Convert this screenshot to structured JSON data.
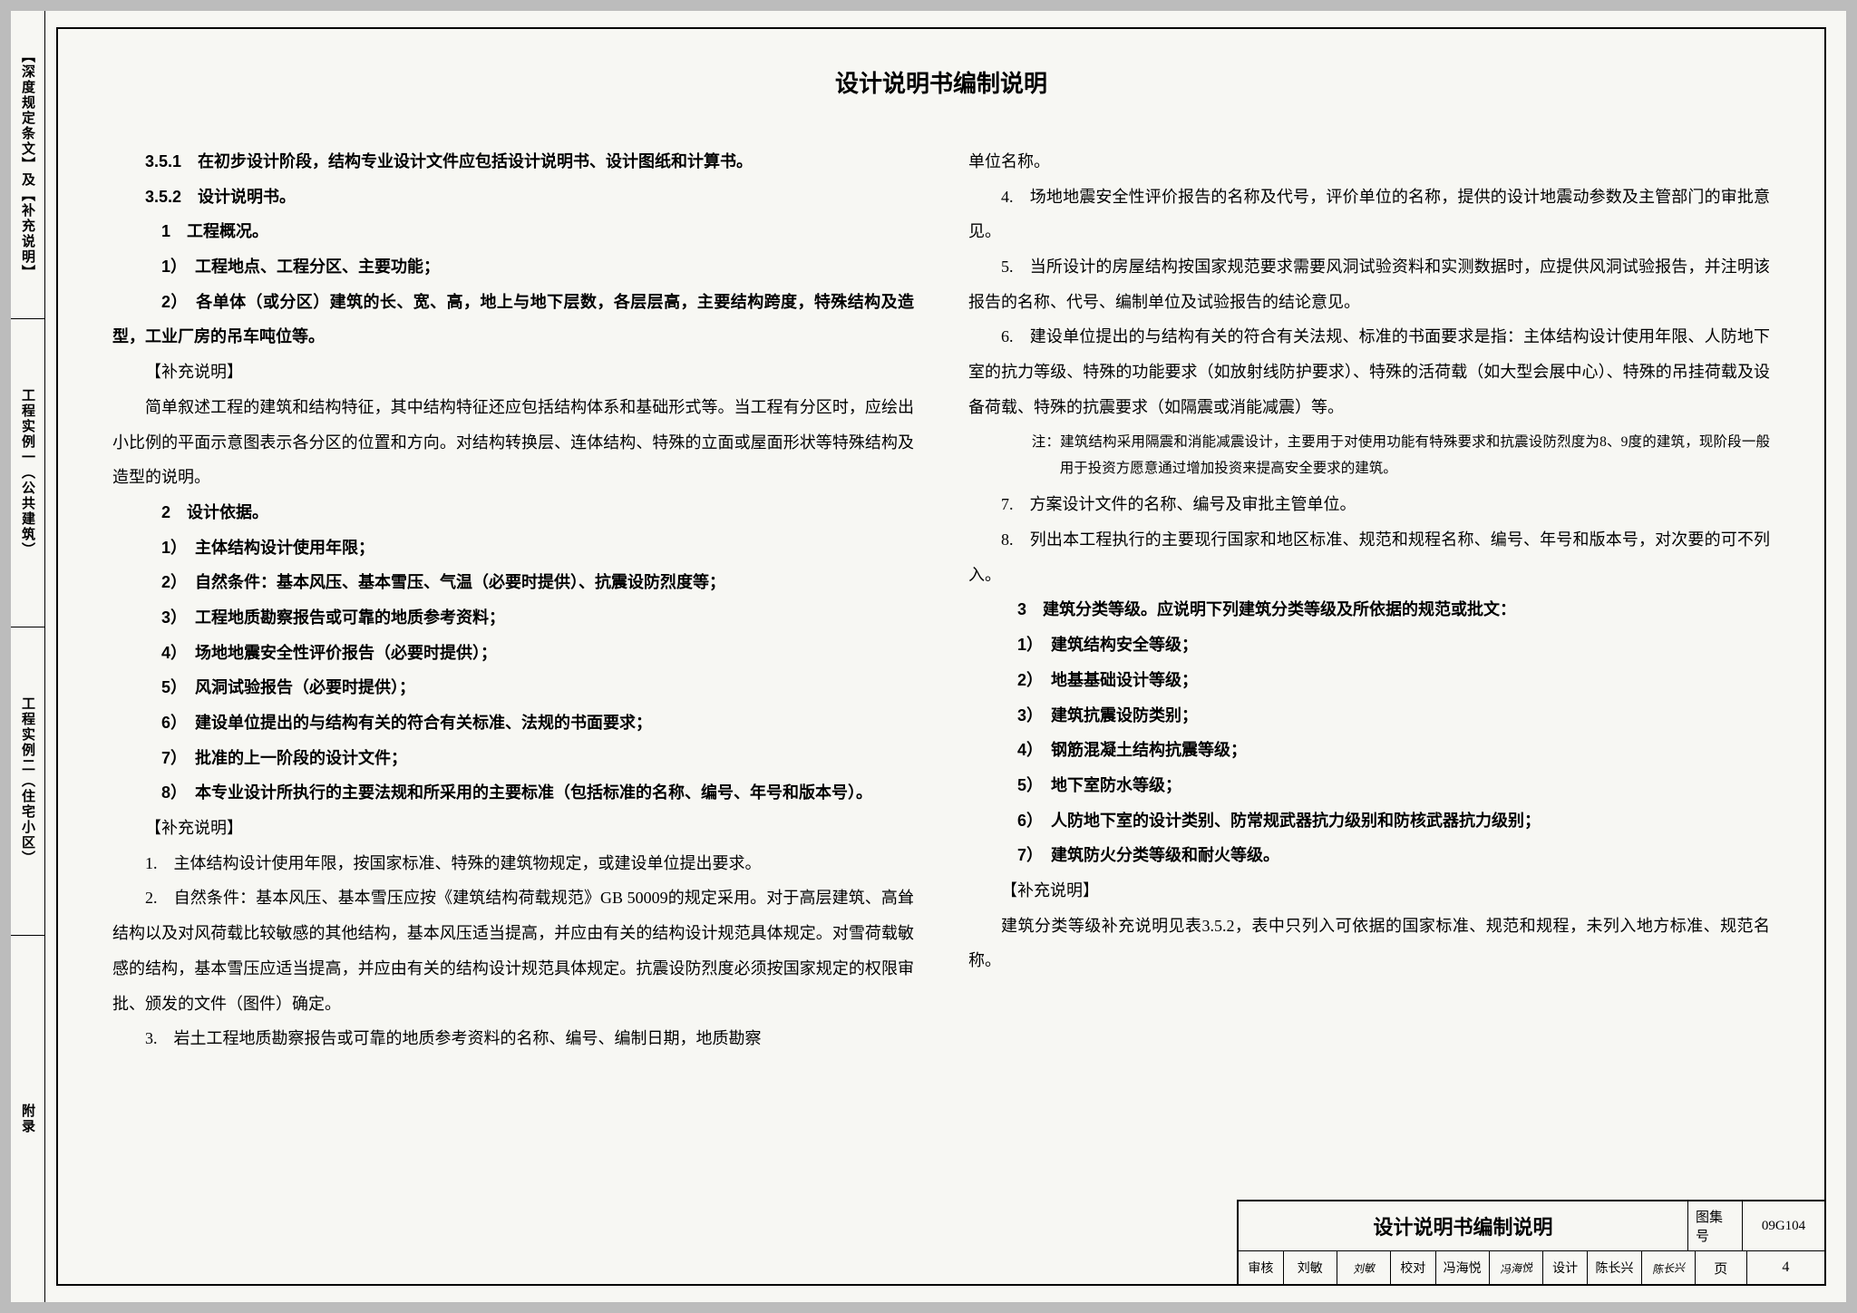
{
  "sidebar": {
    "tabs": [
      "【深度规定条文】及【补充说明】",
      "工程实例一（公共建筑）",
      "工程实例二（住宅小区）",
      "附录"
    ]
  },
  "document": {
    "title": "设计说明书编制说明",
    "left_column": {
      "p1": "3.5.1　在初步设计阶段，结构专业设计文件应包括设计说明书、设计图纸和计算书。",
      "p2": "3.5.2　设计说明书。",
      "p3": "1　工程概况。",
      "p4": "1）　工程地点、工程分区、主要功能；",
      "p5": "2）　各单体（或分区）建筑的长、宽、高，地上与地下层数，各层层高，主要结构跨度，特殊结构及造型，工业厂房的吊车吨位等。",
      "p6": "【补充说明】",
      "p7": "简单叙述工程的建筑和结构特征，其中结构特征还应包括结构体系和基础形式等。当工程有分区时，应绘出小比例的平面示意图表示各分区的位置和方向。对结构转换层、连体结构、特殊的立面或屋面形状等特殊结构及造型的说明。",
      "p8": "2　设计依据。",
      "p9": "1）　主体结构设计使用年限；",
      "p10": "2）　自然条件：基本风压、基本雪压、气温（必要时提供）、抗震设防烈度等；",
      "p11": "3）　工程地质勘察报告或可靠的地质参考资料；",
      "p12": "4）　场地地震安全性评价报告（必要时提供）；",
      "p13": "5）　风洞试验报告（必要时提供）；",
      "p14": "6）　建设单位提出的与结构有关的符合有关标准、法规的书面要求；",
      "p15": "7）　批准的上一阶段的设计文件；",
      "p16": "8）　本专业设计所执行的主要法规和所采用的主要标准（包括标准的名称、编号、年号和版本号）。",
      "p17": "【补充说明】",
      "p18": "1.　主体结构设计使用年限，按国家标准、特殊的建筑物规定，或建设单位提出要求。",
      "p19": "2.　自然条件：基本风压、基本雪压应按《建筑结构荷载规范》GB 50009的规定采用。对于高层建筑、高耸结构以及对风荷载比较敏感的其他结构，基本风压适当提高，并应由有关的结构设计规范具体规定。对雪荷载敏感的结构，基本雪压应适当提高，并应由有关的结构设计规范具体规定。抗震设防烈度必须按国家规定的权限审批、颁发的文件（图件）确定。",
      "p20": "3.　岩土工程地质勘察报告或可靠的地质参考资料的名称、编号、编制日期，地质勘察"
    },
    "right_column": {
      "p1": "单位名称。",
      "p2": "4.　场地地震安全性评价报告的名称及代号，评价单位的名称，提供的设计地震动参数及主管部门的审批意见。",
      "p3": "5.　当所设计的房屋结构按国家规范要求需要风洞试验资料和实测数据时，应提供风洞试验报告，并注明该报告的名称、代号、编制单位及试验报告的结论意见。",
      "p4": "6.　建设单位提出的与结构有关的符合有关法规、标准的书面要求是指：主体结构设计使用年限、人防地下室的抗力等级、特殊的功能要求（如放射线防护要求）、特殊的活荷载（如大型会展中心）、特殊的吊挂荷载及设备荷载、特殊的抗震要求（如隔震或消能减震）等。",
      "note1": "注：建筑结构采用隔震和消能减震设计，主要用于对使用功能有特殊要求和抗震设防烈度为8、9度的建筑，现阶段一般用于投资方愿意通过增加投资来提高安全要求的建筑。",
      "p5": "7.　方案设计文件的名称、编号及审批主管单位。",
      "p6": "8.　列出本工程执行的主要现行国家和地区标准、规范和规程名称、编号、年号和版本号，对次要的可不列入。",
      "p7": "3　建筑分类等级。应说明下列建筑分类等级及所依据的规范或批文：",
      "p8": "1）　建筑结构安全等级；",
      "p9": "2）　地基基础设计等级；",
      "p10": "3）　建筑抗震设防类别；",
      "p11": "4）　钢筋混凝土结构抗震等级；",
      "p12": "5）　地下室防水等级；",
      "p13": "6）　人防地下室的设计类别、防常规武器抗力级别和防核武器抗力级别；",
      "p14": "7）　建筑防火分类等级和耐火等级。",
      "p15": "【补充说明】",
      "p16": "建筑分类等级补充说明见表3.5.2，表中只列入可依据的国家标准、规范和规程，未列入地方标准、规范名称。"
    }
  },
  "titleblock": {
    "title": "设计说明书编制说明",
    "set_label": "图集号",
    "set_value": "09G104",
    "row2": {
      "c1_label": "审核",
      "c1_name": "刘敏",
      "c1_sign": "刘敏",
      "c2_label": "校对",
      "c2_name": "冯海悦",
      "c2_sign": "冯海悦",
      "c3_label": "设计",
      "c3_name": "陈长兴",
      "c3_sign": "陈长兴",
      "page_label": "页",
      "page_value": "4"
    }
  },
  "style": {
    "background": "#bcbcbc",
    "page_bg": "#f7f7f3",
    "border_color": "#000000",
    "title_fontsize": 26,
    "body_fontsize": 18,
    "line_height": 2.15
  }
}
